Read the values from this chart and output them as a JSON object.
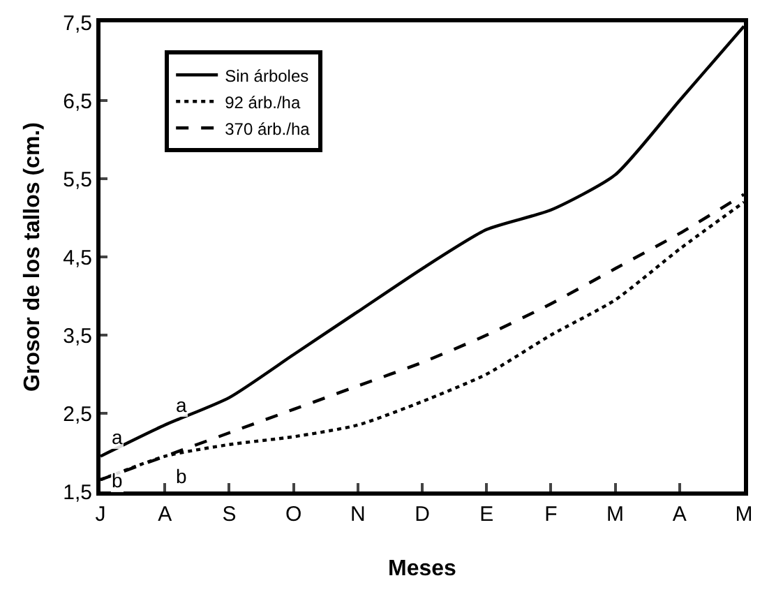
{
  "chart_data": {
    "type": "line",
    "xlabel": "Meses",
    "ylabel": "Grosor de los tallos (cm.)",
    "categories": [
      "J",
      "A",
      "S",
      "O",
      "N",
      "D",
      "E",
      "F",
      "M",
      "A",
      "M"
    ],
    "series": [
      {
        "name": "Sin árboles",
        "color": "#000000",
        "line_style": "solid",
        "values": [
          1.95,
          2.35,
          2.7,
          3.25,
          3.8,
          4.35,
          4.85,
          5.1,
          5.55,
          6.5,
          7.45
        ]
      },
      {
        "name": "92 árb./ha",
        "color": "#000000",
        "line_style": "dotted",
        "values": [
          1.65,
          1.95,
          2.1,
          2.2,
          2.35,
          2.65,
          3.0,
          3.5,
          3.95,
          4.6,
          5.2
        ]
      },
      {
        "name": "370 árb./ha",
        "color": "#000000",
        "line_style": "dashed",
        "values": [
          1.65,
          1.95,
          2.25,
          2.55,
          2.85,
          3.15,
          3.5,
          3.9,
          4.35,
          4.8,
          5.3
        ]
      }
    ],
    "ylim": [
      1.5,
      7.5
    ],
    "yticks": [
      {
        "value": 1.5,
        "label": "1,5"
      },
      {
        "value": 2.5,
        "label": "2,5"
      },
      {
        "value": 3.5,
        "label": "3,5"
      },
      {
        "value": 4.5,
        "label": "4,5"
      },
      {
        "value": 5.5,
        "label": "5,5"
      },
      {
        "value": 6.5,
        "label": "6,5"
      },
      {
        "value": 7.5,
        "label": "7,5"
      }
    ],
    "annotations": [
      {
        "text": "a",
        "x": "J",
        "y": 1.95
      },
      {
        "text": "a",
        "x": "A",
        "y": 2.35
      },
      {
        "text": "b",
        "x": "J",
        "y": 1.65
      },
      {
        "text": "b",
        "x": "A",
        "y": 1.95
      }
    ],
    "grid": false,
    "legend": "top left",
    "marker": "none"
  }
}
